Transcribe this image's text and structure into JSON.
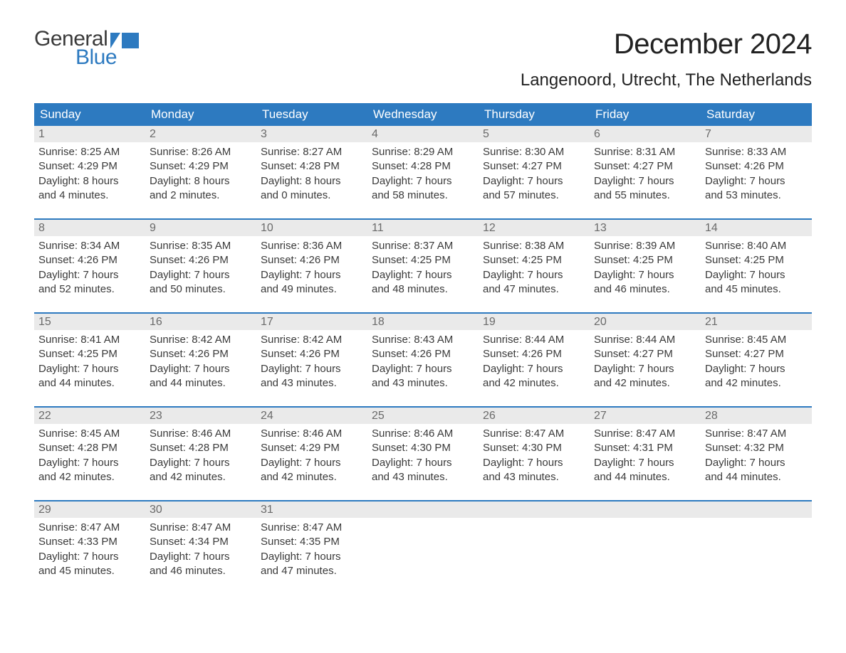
{
  "brand": {
    "word1": "General",
    "word2": "Blue",
    "accent_color": "#2d7ac0",
    "text_color": "#3a3a3a"
  },
  "title": "December 2024",
  "location": "Langenoord, Utrecht, The Netherlands",
  "header_bg": "#2d7ac0",
  "header_text_color": "#ffffff",
  "daynum_bg": "#eaeaea",
  "daynum_color": "#6a6a6a",
  "body_text_color": "#3a3a3a",
  "week_border_color": "#2d7ac0",
  "weekdays": [
    "Sunday",
    "Monday",
    "Tuesday",
    "Wednesday",
    "Thursday",
    "Friday",
    "Saturday"
  ],
  "weeks": [
    [
      {
        "n": "1",
        "sr": "Sunrise: 8:25 AM",
        "ss": "Sunset: 4:29 PM",
        "d1": "Daylight: 8 hours",
        "d2": "and 4 minutes."
      },
      {
        "n": "2",
        "sr": "Sunrise: 8:26 AM",
        "ss": "Sunset: 4:29 PM",
        "d1": "Daylight: 8 hours",
        "d2": "and 2 minutes."
      },
      {
        "n": "3",
        "sr": "Sunrise: 8:27 AM",
        "ss": "Sunset: 4:28 PM",
        "d1": "Daylight: 8 hours",
        "d2": "and 0 minutes."
      },
      {
        "n": "4",
        "sr": "Sunrise: 8:29 AM",
        "ss": "Sunset: 4:28 PM",
        "d1": "Daylight: 7 hours",
        "d2": "and 58 minutes."
      },
      {
        "n": "5",
        "sr": "Sunrise: 8:30 AM",
        "ss": "Sunset: 4:27 PM",
        "d1": "Daylight: 7 hours",
        "d2": "and 57 minutes."
      },
      {
        "n": "6",
        "sr": "Sunrise: 8:31 AM",
        "ss": "Sunset: 4:27 PM",
        "d1": "Daylight: 7 hours",
        "d2": "and 55 minutes."
      },
      {
        "n": "7",
        "sr": "Sunrise: 8:33 AM",
        "ss": "Sunset: 4:26 PM",
        "d1": "Daylight: 7 hours",
        "d2": "and 53 minutes."
      }
    ],
    [
      {
        "n": "8",
        "sr": "Sunrise: 8:34 AM",
        "ss": "Sunset: 4:26 PM",
        "d1": "Daylight: 7 hours",
        "d2": "and 52 minutes."
      },
      {
        "n": "9",
        "sr": "Sunrise: 8:35 AM",
        "ss": "Sunset: 4:26 PM",
        "d1": "Daylight: 7 hours",
        "d2": "and 50 minutes."
      },
      {
        "n": "10",
        "sr": "Sunrise: 8:36 AM",
        "ss": "Sunset: 4:26 PM",
        "d1": "Daylight: 7 hours",
        "d2": "and 49 minutes."
      },
      {
        "n": "11",
        "sr": "Sunrise: 8:37 AM",
        "ss": "Sunset: 4:25 PM",
        "d1": "Daylight: 7 hours",
        "d2": "and 48 minutes."
      },
      {
        "n": "12",
        "sr": "Sunrise: 8:38 AM",
        "ss": "Sunset: 4:25 PM",
        "d1": "Daylight: 7 hours",
        "d2": "and 47 minutes."
      },
      {
        "n": "13",
        "sr": "Sunrise: 8:39 AM",
        "ss": "Sunset: 4:25 PM",
        "d1": "Daylight: 7 hours",
        "d2": "and 46 minutes."
      },
      {
        "n": "14",
        "sr": "Sunrise: 8:40 AM",
        "ss": "Sunset: 4:25 PM",
        "d1": "Daylight: 7 hours",
        "d2": "and 45 minutes."
      }
    ],
    [
      {
        "n": "15",
        "sr": "Sunrise: 8:41 AM",
        "ss": "Sunset: 4:25 PM",
        "d1": "Daylight: 7 hours",
        "d2": "and 44 minutes."
      },
      {
        "n": "16",
        "sr": "Sunrise: 8:42 AM",
        "ss": "Sunset: 4:26 PM",
        "d1": "Daylight: 7 hours",
        "d2": "and 44 minutes."
      },
      {
        "n": "17",
        "sr": "Sunrise: 8:42 AM",
        "ss": "Sunset: 4:26 PM",
        "d1": "Daylight: 7 hours",
        "d2": "and 43 minutes."
      },
      {
        "n": "18",
        "sr": "Sunrise: 8:43 AM",
        "ss": "Sunset: 4:26 PM",
        "d1": "Daylight: 7 hours",
        "d2": "and 43 minutes."
      },
      {
        "n": "19",
        "sr": "Sunrise: 8:44 AM",
        "ss": "Sunset: 4:26 PM",
        "d1": "Daylight: 7 hours",
        "d2": "and 42 minutes."
      },
      {
        "n": "20",
        "sr": "Sunrise: 8:44 AM",
        "ss": "Sunset: 4:27 PM",
        "d1": "Daylight: 7 hours",
        "d2": "and 42 minutes."
      },
      {
        "n": "21",
        "sr": "Sunrise: 8:45 AM",
        "ss": "Sunset: 4:27 PM",
        "d1": "Daylight: 7 hours",
        "d2": "and 42 minutes."
      }
    ],
    [
      {
        "n": "22",
        "sr": "Sunrise: 8:45 AM",
        "ss": "Sunset: 4:28 PM",
        "d1": "Daylight: 7 hours",
        "d2": "and 42 minutes."
      },
      {
        "n": "23",
        "sr": "Sunrise: 8:46 AM",
        "ss": "Sunset: 4:28 PM",
        "d1": "Daylight: 7 hours",
        "d2": "and 42 minutes."
      },
      {
        "n": "24",
        "sr": "Sunrise: 8:46 AM",
        "ss": "Sunset: 4:29 PM",
        "d1": "Daylight: 7 hours",
        "d2": "and 42 minutes."
      },
      {
        "n": "25",
        "sr": "Sunrise: 8:46 AM",
        "ss": "Sunset: 4:30 PM",
        "d1": "Daylight: 7 hours",
        "d2": "and 43 minutes."
      },
      {
        "n": "26",
        "sr": "Sunrise: 8:47 AM",
        "ss": "Sunset: 4:30 PM",
        "d1": "Daylight: 7 hours",
        "d2": "and 43 minutes."
      },
      {
        "n": "27",
        "sr": "Sunrise: 8:47 AM",
        "ss": "Sunset: 4:31 PM",
        "d1": "Daylight: 7 hours",
        "d2": "and 44 minutes."
      },
      {
        "n": "28",
        "sr": "Sunrise: 8:47 AM",
        "ss": "Sunset: 4:32 PM",
        "d1": "Daylight: 7 hours",
        "d2": "and 44 minutes."
      }
    ],
    [
      {
        "n": "29",
        "sr": "Sunrise: 8:47 AM",
        "ss": "Sunset: 4:33 PM",
        "d1": "Daylight: 7 hours",
        "d2": "and 45 minutes."
      },
      {
        "n": "30",
        "sr": "Sunrise: 8:47 AM",
        "ss": "Sunset: 4:34 PM",
        "d1": "Daylight: 7 hours",
        "d2": "and 46 minutes."
      },
      {
        "n": "31",
        "sr": "Sunrise: 8:47 AM",
        "ss": "Sunset: 4:35 PM",
        "d1": "Daylight: 7 hours",
        "d2": "and 47 minutes."
      },
      {
        "n": "",
        "sr": "",
        "ss": "",
        "d1": "",
        "d2": ""
      },
      {
        "n": "",
        "sr": "",
        "ss": "",
        "d1": "",
        "d2": ""
      },
      {
        "n": "",
        "sr": "",
        "ss": "",
        "d1": "",
        "d2": ""
      },
      {
        "n": "",
        "sr": "",
        "ss": "",
        "d1": "",
        "d2": ""
      }
    ]
  ]
}
